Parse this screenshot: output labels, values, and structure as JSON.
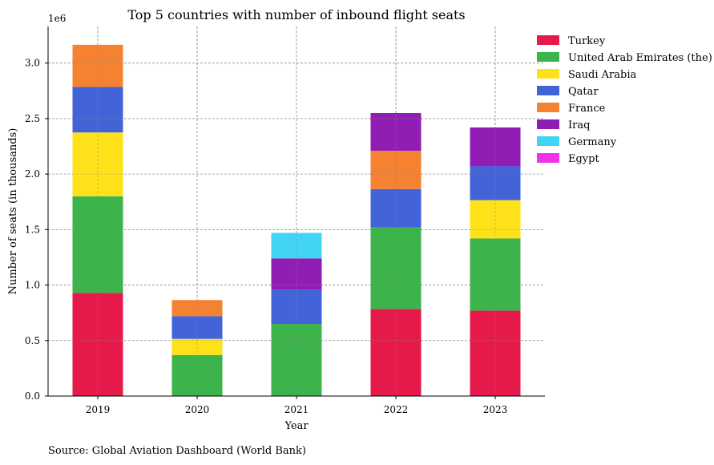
{
  "chart_data": {
    "type": "bar",
    "stacked": true,
    "title": "Top 5 countries with number of inbound flight seats",
    "xlabel": "Year",
    "ylabel": "Number of seats (in thousands)",
    "y_offset_text": "1e6",
    "ylim": [
      0,
      3330000
    ],
    "y_ticks": [
      "0.0",
      "0.5",
      "1.0",
      "1.5",
      "2.0",
      "2.5",
      "3.0"
    ],
    "y_tick_values": [
      0,
      500000,
      1000000,
      1500000,
      2000000,
      2500000,
      3000000
    ],
    "grid": true,
    "legend_position": "top-right-outside",
    "categories": [
      "2019",
      "2020",
      "2021",
      "2022",
      "2023"
    ],
    "series": [
      {
        "name": "Turkey",
        "color": "#e6194b",
        "values": [
          930000,
          0,
          0,
          785000,
          770000
        ]
      },
      {
        "name": "United Arab Emirates (the)",
        "color": "#3cb44b",
        "values": [
          870000,
          370000,
          650000,
          735000,
          650000
        ]
      },
      {
        "name": "Saudi Arabia",
        "color": "#ffe119",
        "values": [
          575000,
          145000,
          0,
          0,
          345000
        ]
      },
      {
        "name": "Qatar",
        "color": "#4363d8",
        "values": [
          410000,
          205000,
          310000,
          345000,
          305000
        ]
      },
      {
        "name": "France",
        "color": "#f58231",
        "values": [
          380000,
          145000,
          0,
          345000,
          0
        ]
      },
      {
        "name": "Iraq",
        "color": "#911eb4",
        "values": [
          0,
          0,
          280000,
          340000,
          350000
        ]
      },
      {
        "name": "Germany",
        "color": "#42d4f4",
        "values": [
          0,
          0,
          230000,
          0,
          0
        ]
      },
      {
        "name": "Egypt",
        "color": "#f032e6",
        "values": [
          0,
          0,
          0,
          0,
          0
        ]
      }
    ],
    "extra_bottom": [
      0,
      330000,
      640000,
      0,
      0
    ],
    "extra_bottom_series": "Turkey"
  },
  "source": "Source: Global Aviation Dashboard (World Bank)"
}
